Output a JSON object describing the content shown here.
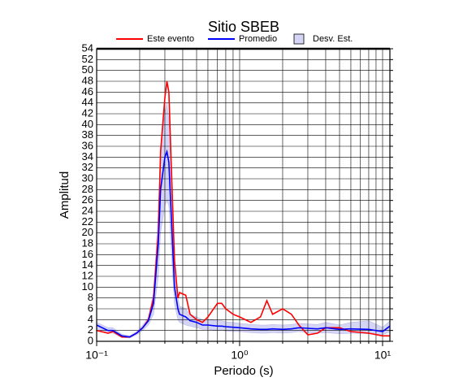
{
  "chart_data": {
    "type": "line",
    "title": "Sitio SBEB",
    "xlabel": "Periodo (s)",
    "ylabel": "Amplitud",
    "xscale": "log",
    "grid": true,
    "x": [
      0.1,
      0.12,
      0.13,
      0.15,
      0.17,
      0.19,
      0.21,
      0.23,
      0.25,
      0.27,
      0.28,
      0.3,
      0.31,
      0.32,
      0.33,
      0.35,
      0.37,
      0.38,
      0.42,
      0.45,
      0.5,
      0.55,
      0.6,
      0.7,
      0.75,
      0.8,
      0.9,
      1,
      1.2,
      1.4,
      1.55,
      1.7,
      2,
      2.3,
      2.6,
      3,
      3.5,
      4,
      5,
      6,
      8,
      10,
      11.25
    ],
    "series": [
      {
        "name": "Este evento",
        "color": "#ff0000",
        "values": [
          2,
          1.5,
          1.8,
          0.8,
          0.8,
          1.5,
          2.5,
          4,
          8,
          20,
          35,
          45,
          48,
          46,
          35,
          15,
          8,
          9,
          8.5,
          5,
          4,
          3.5,
          4.5,
          7,
          7,
          6,
          5,
          4.5,
          3.5,
          4.5,
          7.5,
          5,
          6,
          5,
          3,
          1.2,
          1.5,
          2.5,
          2.5,
          1.8,
          1.5,
          1,
          1
        ]
      },
      {
        "name": "Promedio",
        "color": "#0000ff",
        "values": [
          3,
          2,
          2,
          1,
          0.8,
          1.5,
          2.5,
          3.8,
          7,
          18,
          28,
          34,
          35,
          33,
          25,
          10,
          6,
          5,
          4.5,
          3.8,
          3.5,
          3,
          3,
          2.8,
          2.8,
          2.7,
          2.6,
          2.5,
          2.3,
          2.2,
          2.2,
          2.3,
          2.2,
          2.3,
          2.5,
          2.4,
          2.3,
          2.5,
          2.2,
          2.3,
          2.2,
          1.8,
          2.8
        ]
      }
    ],
    "band": {
      "name": "Desv. Est.",
      "color": "#d4d4f6",
      "lower": [
        2,
        1.5,
        1.5,
        0.7,
        0.6,
        1.2,
        2,
        3,
        5,
        12,
        20,
        25,
        26,
        25,
        18,
        7,
        4,
        3.5,
        3,
        2.8,
        2.5,
        2.2,
        2.2,
        2,
        2,
        1.9,
        1.8,
        1.8,
        1.6,
        1.5,
        1.5,
        1.6,
        1.5,
        1.6,
        1.8,
        1.6,
        1.5,
        1.6,
        1.4,
        1.5,
        1.4,
        1.2,
        1.8
      ],
      "upper": [
        3.5,
        2.5,
        2.5,
        1.3,
        1,
        1.8,
        3,
        4.5,
        9,
        24,
        36,
        42,
        44,
        41,
        32,
        14,
        8,
        6.5,
        6,
        5,
        4.5,
        4,
        4,
        3.8,
        3.8,
        3.6,
        3.5,
        3.3,
        3.1,
        3,
        3,
        3.1,
        3,
        3.1,
        3.3,
        3.2,
        3.1,
        3.5,
        3,
        3.5,
        3.8,
        2.6,
        3.8
      ]
    },
    "xlim": [
      0.1,
      11.25
    ],
    "xticks": [
      {
        "value": 0.1,
        "label": "10⁻¹"
      },
      {
        "value": 1,
        "label": "10⁰"
      },
      {
        "value": 10,
        "label": "10¹"
      }
    ],
    "xminorticks": [
      0.2,
      0.3,
      0.4,
      0.5,
      0.6,
      0.7,
      0.8,
      0.9,
      2,
      3,
      4,
      5,
      6,
      7,
      8,
      9
    ],
    "ylim": [
      0,
      54
    ],
    "yticks": [
      0,
      2,
      4,
      6,
      8,
      10,
      12,
      14,
      16,
      18,
      20,
      22,
      24,
      26,
      28,
      30,
      32,
      34,
      36,
      38,
      40,
      42,
      44,
      46,
      48,
      50,
      52,
      54
    ]
  }
}
